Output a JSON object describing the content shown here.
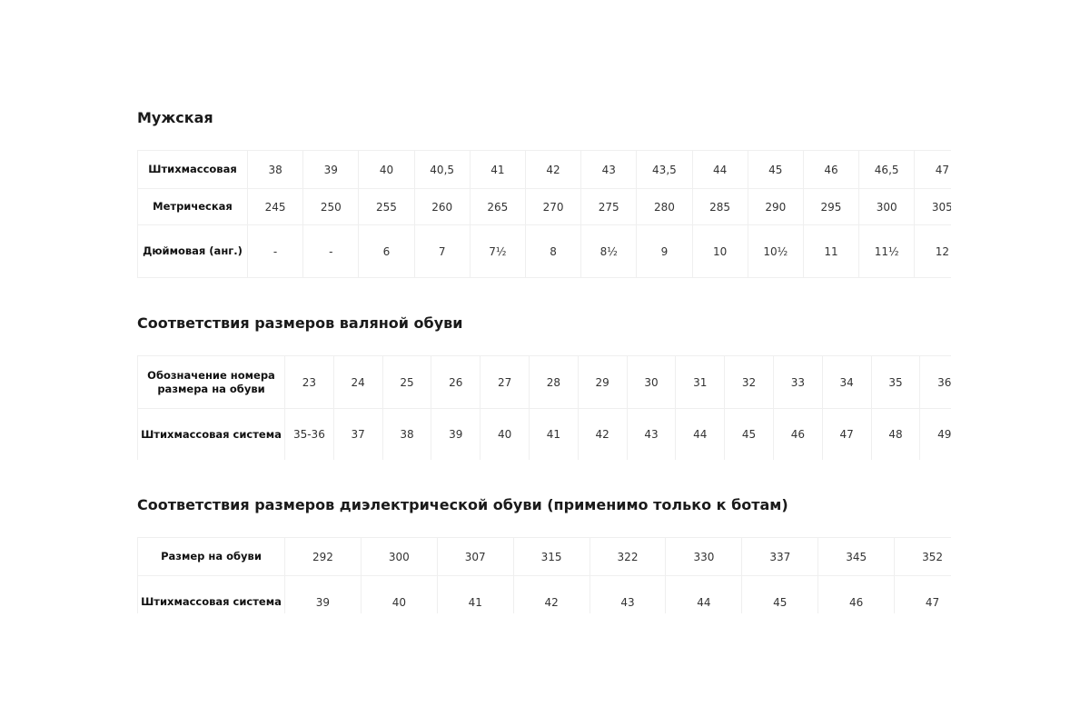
{
  "sections": [
    {
      "title": "Мужская",
      "rows": [
        {
          "label": "Штихмассовая",
          "values": [
            "38",
            "39",
            "40",
            "40,5",
            "41",
            "42",
            "43",
            "43,5",
            "44",
            "45",
            "46",
            "46,5",
            "47"
          ]
        },
        {
          "label": "Метрическая",
          "values": [
            "245",
            "250",
            "255",
            "260",
            "265",
            "270",
            "275",
            "280",
            "285",
            "290",
            "295",
            "300",
            "305"
          ]
        },
        {
          "label": "Дюймовая (анг.)",
          "values": [
            "-",
            "-",
            "6",
            "7",
            "7½",
            "8",
            "8½",
            "9",
            "10",
            "10½",
            "11",
            "11½",
            "12"
          ]
        }
      ]
    },
    {
      "title": "Соответствия размеров валяной обуви",
      "rows": [
        {
          "label": "Обозначение номера размера на обуви",
          "values": [
            "23",
            "24",
            "25",
            "26",
            "27",
            "28",
            "29",
            "30",
            "31",
            "32",
            "33",
            "34",
            "35",
            "36"
          ]
        },
        {
          "label": "Штихмассовая система",
          "values": [
            "35-36",
            "37",
            "38",
            "39",
            "40",
            "41",
            "42",
            "43",
            "44",
            "45",
            "46",
            "47",
            "48",
            "49"
          ]
        }
      ]
    },
    {
      "title": "Соответствия размеров диэлектрической обуви (применимо только к ботам)",
      "rows": [
        {
          "label": "Размер на обуви",
          "values": [
            "292",
            "300",
            "307",
            "315",
            "322",
            "330",
            "337",
            "345",
            "352"
          ]
        },
        {
          "label": "Штихмассовая система",
          "values": [
            "39",
            "40",
            "41",
            "42",
            "43",
            "44",
            "45",
            "46",
            "47"
          ]
        }
      ]
    }
  ]
}
